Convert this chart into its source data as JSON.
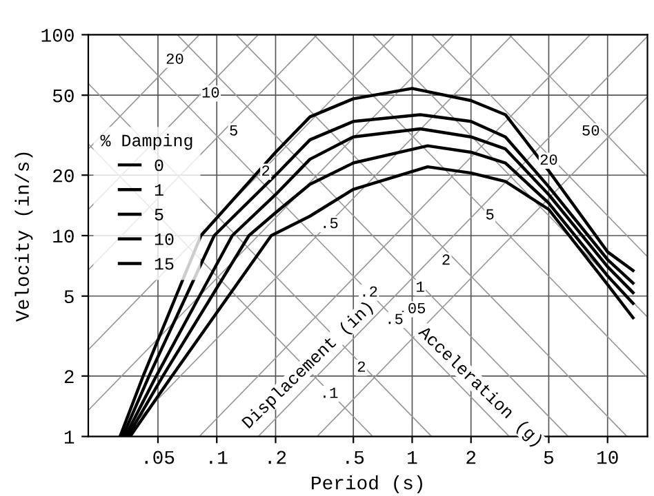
{
  "chart_data": {
    "type": "line",
    "xlabel": "Period (s)",
    "ylabel": "Velocity (in/s)",
    "legend_title": "% Damping",
    "legend": "left",
    "log": "xy",
    "grid": true,
    "marker": "none",
    "line_style": "solid",
    "xlim": [
      0.022,
      16
    ],
    "ylim": [
      1,
      100
    ],
    "xticks": [
      {
        "value": 0.05,
        "label": ".05"
      },
      {
        "value": 0.1,
        "label": ".1"
      },
      {
        "value": 0.2,
        "label": ".2"
      },
      {
        "value": 0.5,
        "label": ".5"
      },
      1,
      2,
      5,
      10
    ],
    "yticks": [
      1,
      2,
      5,
      10,
      20,
      50,
      100
    ],
    "series": [
      {
        "name": "0",
        "color": "#000000",
        "x": [
          0.032,
          0.042,
          0.083,
          0.2,
          0.3,
          0.5,
          1,
          2,
          3,
          5,
          10,
          13.5
        ],
        "values": [
          1,
          2,
          10,
          26,
          39,
          48,
          54,
          47,
          40,
          21,
          8.3,
          6.7
        ]
      },
      {
        "name": "1",
        "color": "#000000",
        "x": [
          0.033,
          0.045,
          0.097,
          0.2,
          0.3,
          0.5,
          1.1,
          2,
          3,
          5,
          10,
          13.5
        ],
        "values": [
          1,
          2,
          10,
          20,
          30,
          37,
          40,
          37,
          31,
          17.5,
          7.6,
          5.8
        ]
      },
      {
        "name": "5",
        "color": "#000000",
        "x": [
          0.034,
          0.049,
          0.12,
          0.2,
          0.3,
          0.5,
          1.1,
          2,
          3,
          5,
          10,
          13.5
        ],
        "values": [
          1,
          2,
          10,
          16,
          24,
          31,
          34,
          31,
          27,
          16,
          7,
          5.2
        ]
      },
      {
        "name": "10",
        "color": "#000000",
        "x": [
          0.035,
          0.053,
          0.146,
          0.2,
          0.3,
          0.5,
          1.2,
          2,
          3,
          5,
          10,
          13.5
        ],
        "values": [
          1,
          2,
          10,
          13,
          18,
          23,
          28,
          26,
          23,
          14.5,
          6.3,
          4.6
        ]
      },
      {
        "name": "15",
        "color": "#000000",
        "x": [
          0.036,
          0.059,
          0.19,
          0.3,
          0.5,
          1.2,
          2,
          3,
          5,
          10,
          13.5
        ],
        "values": [
          1,
          2,
          10,
          12.5,
          17,
          22,
          20.5,
          18.6,
          13.5,
          5.7,
          3.9
        ]
      },
      {
        "color": "#999999",
        "x": [
          0.022,
          0.0814
        ],
        "values": [
          27,
          100
        ]
      },
      {
        "color": "#999999",
        "x": [
          0.022,
          0.163
        ],
        "values": [
          13.5,
          100
        ]
      },
      {
        "color": "#999999",
        "x": [
          0.022,
          0.326
        ],
        "values": [
          6.75,
          100
        ]
      },
      {
        "color": "#999999",
        "x": [
          0.022,
          0.814
        ],
        "values": [
          2.7,
          100
        ]
      },
      {
        "color": "#999999",
        "x": [
          0.022,
          1.63
        ],
        "values": [
          1.35,
          100
        ]
      },
      {
        "color": "#999999",
        "x": [
          0.0326,
          3.26
        ],
        "values": [
          1,
          100
        ]
      },
      {
        "color": "#999999",
        "x": [
          0.0814,
          8.14
        ],
        "values": [
          1,
          100
        ]
      },
      {
        "color": "#999999",
        "x": [
          0.163,
          16
        ],
        "values": [
          1,
          98.2
        ]
      },
      {
        "color": "#999999",
        "x": [
          0.326,
          16
        ],
        "values": [
          1,
          49.1
        ]
      },
      {
        "color": "#999999",
        "x": [
          3.14,
          16
        ],
        "values": [
          100,
          19.6
        ]
      },
      {
        "color": "#999999",
        "x": [
          1.257,
          16
        ],
        "values": [
          100,
          7.85
        ]
      },
      {
        "color": "#999999",
        "x": [
          0.628,
          16
        ],
        "values": [
          100,
          3.93
        ]
      },
      {
        "color": "#999999",
        "x": [
          0.314,
          16
        ],
        "values": [
          100,
          1.96
        ]
      },
      {
        "color": "#999999",
        "x": [
          0.1257,
          12.57
        ],
        "values": [
          100,
          1
        ]
      },
      {
        "color": "#999999",
        "x": [
          0.0628,
          6.283
        ],
        "values": [
          100,
          1
        ]
      },
      {
        "color": "#999999",
        "x": [
          0.0314,
          3.14
        ],
        "values": [
          100,
          1
        ]
      },
      {
        "color": "#999999",
        "x": [
          0.022,
          1.257
        ],
        "values": [
          57.1,
          1
        ]
      },
      {
        "color": "#999999",
        "x": [
          0.022,
          0.628
        ],
        "values": [
          28.6,
          1
        ]
      }
    ],
    "annotations": [
      {
        "text": "Displacement (in)",
        "x": 0.33,
        "y": 2.03
      },
      {
        "text": "Acceleration (g)",
        "x": 2.0,
        "y": 1.57
      },
      {
        "text": "20",
        "x": 0.061,
        "y": 75
      },
      {
        "text": "10",
        "x": 0.093,
        "y": 51
      },
      {
        "text": "5",
        "x": 0.122,
        "y": 33
      },
      {
        "text": "2",
        "x": 0.178,
        "y": 20.8
      },
      {
        "text": ".5",
        "x": 0.377,
        "y": 11.4
      },
      {
        "text": ".05",
        "x": 1.0,
        "y": 4.3
      },
      {
        "text": "50",
        "x": 8.2,
        "y": 33
      },
      {
        "text": "20",
        "x": 5.0,
        "y": 23.6
      },
      {
        "text": "5",
        "x": 2.5,
        "y": 12.6
      },
      {
        "text": "2",
        "x": 1.49,
        "y": 7.5
      },
      {
        "text": "1",
        "x": 1.1,
        "y": 5.5
      },
      {
        "text": ".5",
        "x": 0.81,
        "y": 3.8
      },
      {
        "text": ".2",
        "x": 0.6,
        "y": 5.2
      },
      {
        "text": "2",
        "x": 0.55,
        "y": 2.2
      },
      {
        "text": ".1",
        "x": 0.376,
        "y": 1.63
      }
    ]
  }
}
